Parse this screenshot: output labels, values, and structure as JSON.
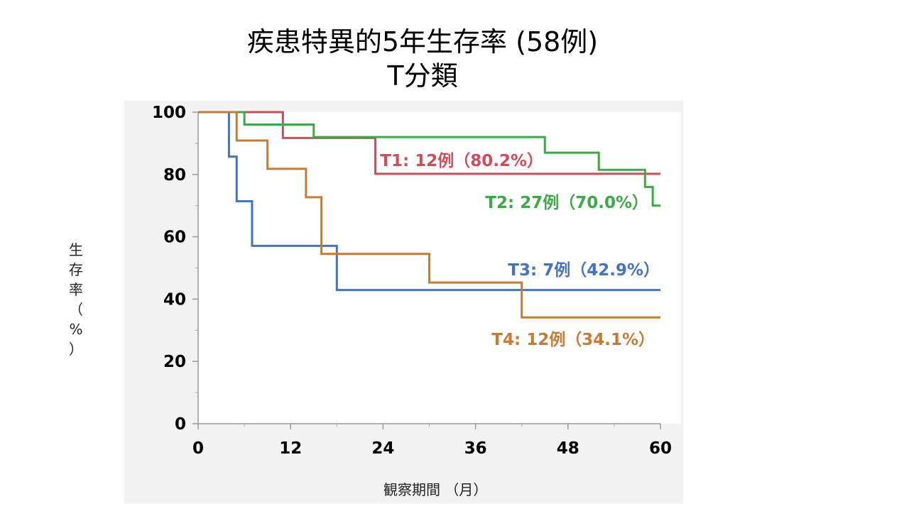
{
  "chart_data": {
    "type": "line",
    "title": "疾患特異的5年生存率 (58例)",
    "subtitle": "T分類",
    "xlabel": "観察期間 （月）",
    "ylabel": "生存率（%）",
    "ylabel_chars": [
      "生",
      "存",
      "率",
      "（",
      "%",
      "）"
    ],
    "xlim": [
      0,
      60
    ],
    "ylim": [
      0,
      100
    ],
    "xticks": [
      0,
      12,
      24,
      36,
      48,
      60
    ],
    "yticks": [
      0,
      20,
      40,
      60,
      80,
      100
    ],
    "xminor": [
      6,
      18,
      30,
      42,
      54
    ],
    "yminor": [
      10,
      30,
      50,
      70,
      90
    ],
    "step": true,
    "series": [
      {
        "name": "T1: 12例（80.2%）",
        "color": "#d14b5a",
        "x": [
          0,
          11,
          23.0,
          60
        ],
        "y": [
          100,
          91.7,
          80.2,
          80.2
        ]
      },
      {
        "name": "T2: 27例（70.0%）",
        "color": "#3aaa45",
        "x": [
          0,
          6,
          15,
          45,
          52,
          58,
          59,
          60
        ],
        "y": [
          100,
          96.0,
          92.0,
          87.0,
          81.5,
          76.0,
          70.0,
          70.0
        ]
      },
      {
        "name": "T3: 7例（42.9%）",
        "color": "#4472c4",
        "x": [
          0,
          4,
          5,
          7,
          18,
          60
        ],
        "y": [
          100,
          85.7,
          71.4,
          57.1,
          42.9,
          42.9
        ]
      },
      {
        "name": "T4: 12例（34.1%）",
        "color": "#c87b30",
        "x": [
          0,
          5,
          9,
          14,
          16,
          30,
          42,
          60
        ],
        "y": [
          100,
          90.9,
          81.8,
          72.7,
          54.5,
          45.3,
          34.1,
          34.1
        ]
      }
    ]
  }
}
